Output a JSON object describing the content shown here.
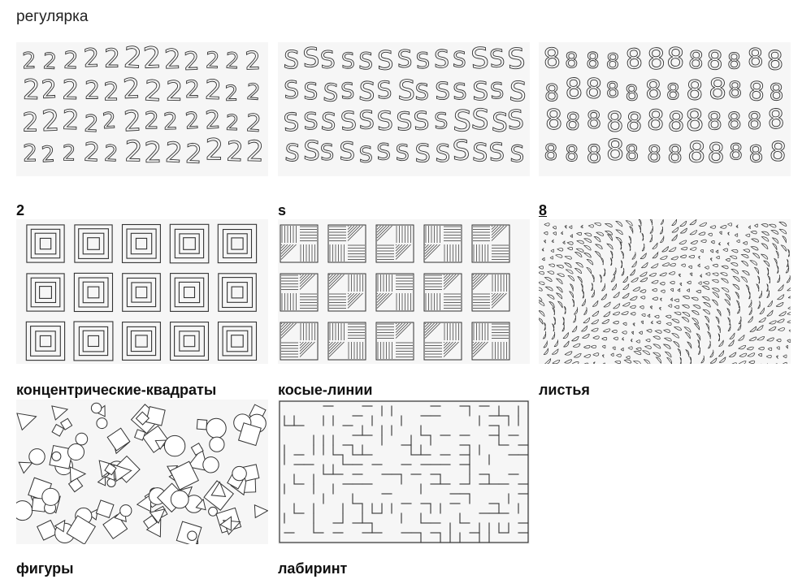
{
  "page": {
    "heading": "регулярка"
  },
  "tiles": [
    {
      "label": "2",
      "pattern": "glyph-2",
      "glyph": "2",
      "active": false
    },
    {
      "label": "s",
      "pattern": "glyph-s",
      "glyph": "S",
      "active": false
    },
    {
      "label": "8",
      "pattern": "glyph-8",
      "glyph": "8",
      "active": true
    },
    {
      "label": "концентрические-квадраты",
      "pattern": "concentric-squares",
      "active": false
    },
    {
      "label": "косые-линии",
      "pattern": "oblique-lines",
      "active": false
    },
    {
      "label": "листья",
      "pattern": "leaves",
      "active": false
    },
    {
      "label": "фигуры",
      "pattern": "shapes",
      "active": false
    },
    {
      "label": "лабиринт",
      "pattern": "maze",
      "active": false
    }
  ],
  "colors": {
    "stroke": "#333333",
    "tile_bg": "#f6f6f6",
    "text": "#111111"
  }
}
